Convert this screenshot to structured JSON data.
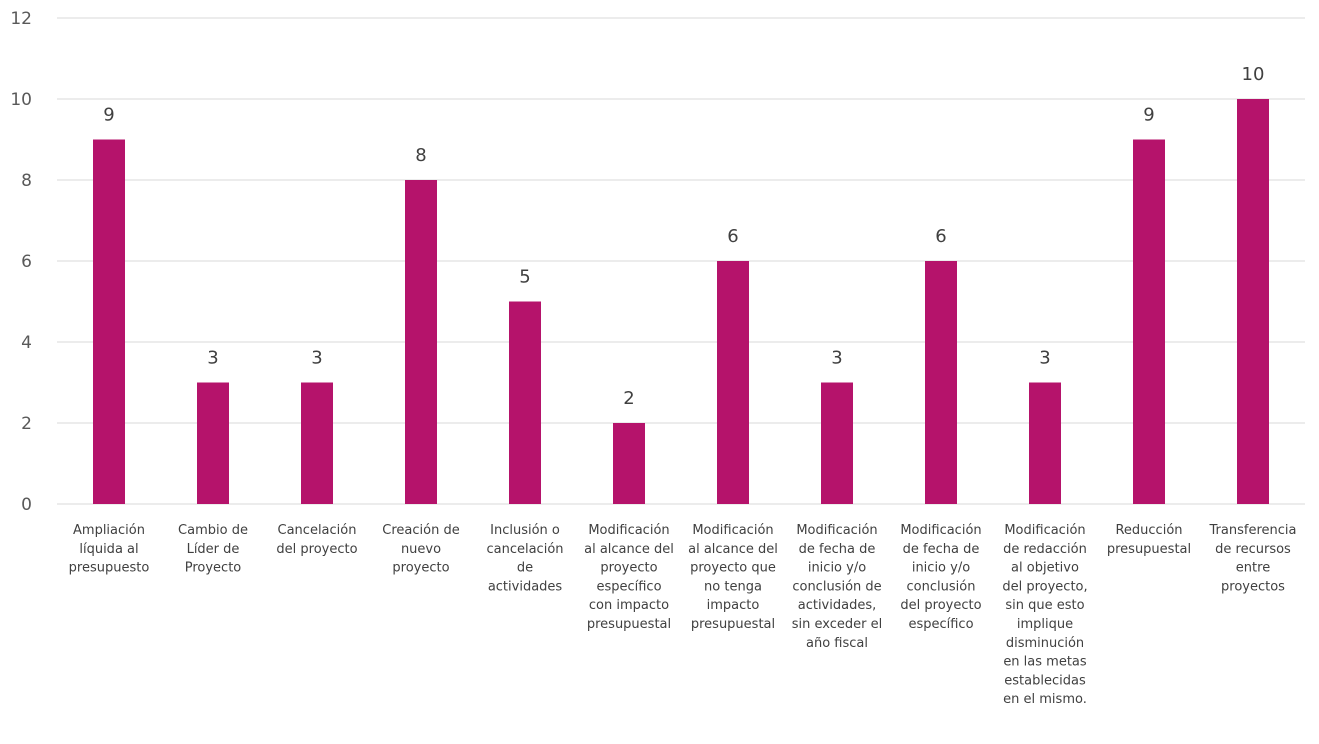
{
  "chart_data": {
    "type": "bar",
    "categories": [
      [
        "Ampliación",
        "líquida al",
        "presupuesto"
      ],
      [
        "Cambio de",
        "Líder de",
        "Proyecto"
      ],
      [
        "Cancelación",
        "del proyecto"
      ],
      [
        "Creación de",
        "nuevo",
        "proyecto"
      ],
      [
        "Inclusión o",
        "cancelación",
        "de",
        "actividades"
      ],
      [
        "Modificación",
        "al alcance del",
        "proyecto",
        "específico",
        "con impacto",
        "presupuestal"
      ],
      [
        "Modificación",
        "al alcance del",
        "proyecto que",
        "no tenga",
        "impacto",
        "presupuestal"
      ],
      [
        "Modificación",
        "de fecha de",
        "inicio y/o",
        "conclusión de",
        "actividades,",
        "sin exceder el",
        "año fiscal"
      ],
      [
        "Modificación",
        "de fecha de",
        "inicio y/o",
        "conclusión",
        "del proyecto",
        "específico"
      ],
      [
        "Modificación",
        "de redacción",
        "al objetivo",
        "del proyecto,",
        "sin que esto",
        "implique",
        "disminución",
        "en las metas",
        "establecidas",
        "en el mismo."
      ],
      [
        "Reducción",
        "presupuestal"
      ],
      [
        "Transferencia",
        "de recursos",
        "entre",
        "proyectos"
      ]
    ],
    "values": [
      9,
      3,
      3,
      8,
      5,
      2,
      6,
      3,
      6,
      3,
      9,
      10
    ],
    "data_labels": [
      "9",
      "3",
      "3",
      "8",
      "5",
      "2",
      "6",
      "3",
      "6",
      "3",
      "9",
      "10"
    ],
    "ylim": [
      0,
      12
    ],
    "yticks": [
      "0",
      "2",
      "4",
      "6",
      "8",
      "10",
      "12"
    ],
    "grid": true,
    "bar_color": "#B5136B",
    "grid_color": "#D9D9D9",
    "title": "",
    "xlabel": "",
    "ylabel": ""
  }
}
